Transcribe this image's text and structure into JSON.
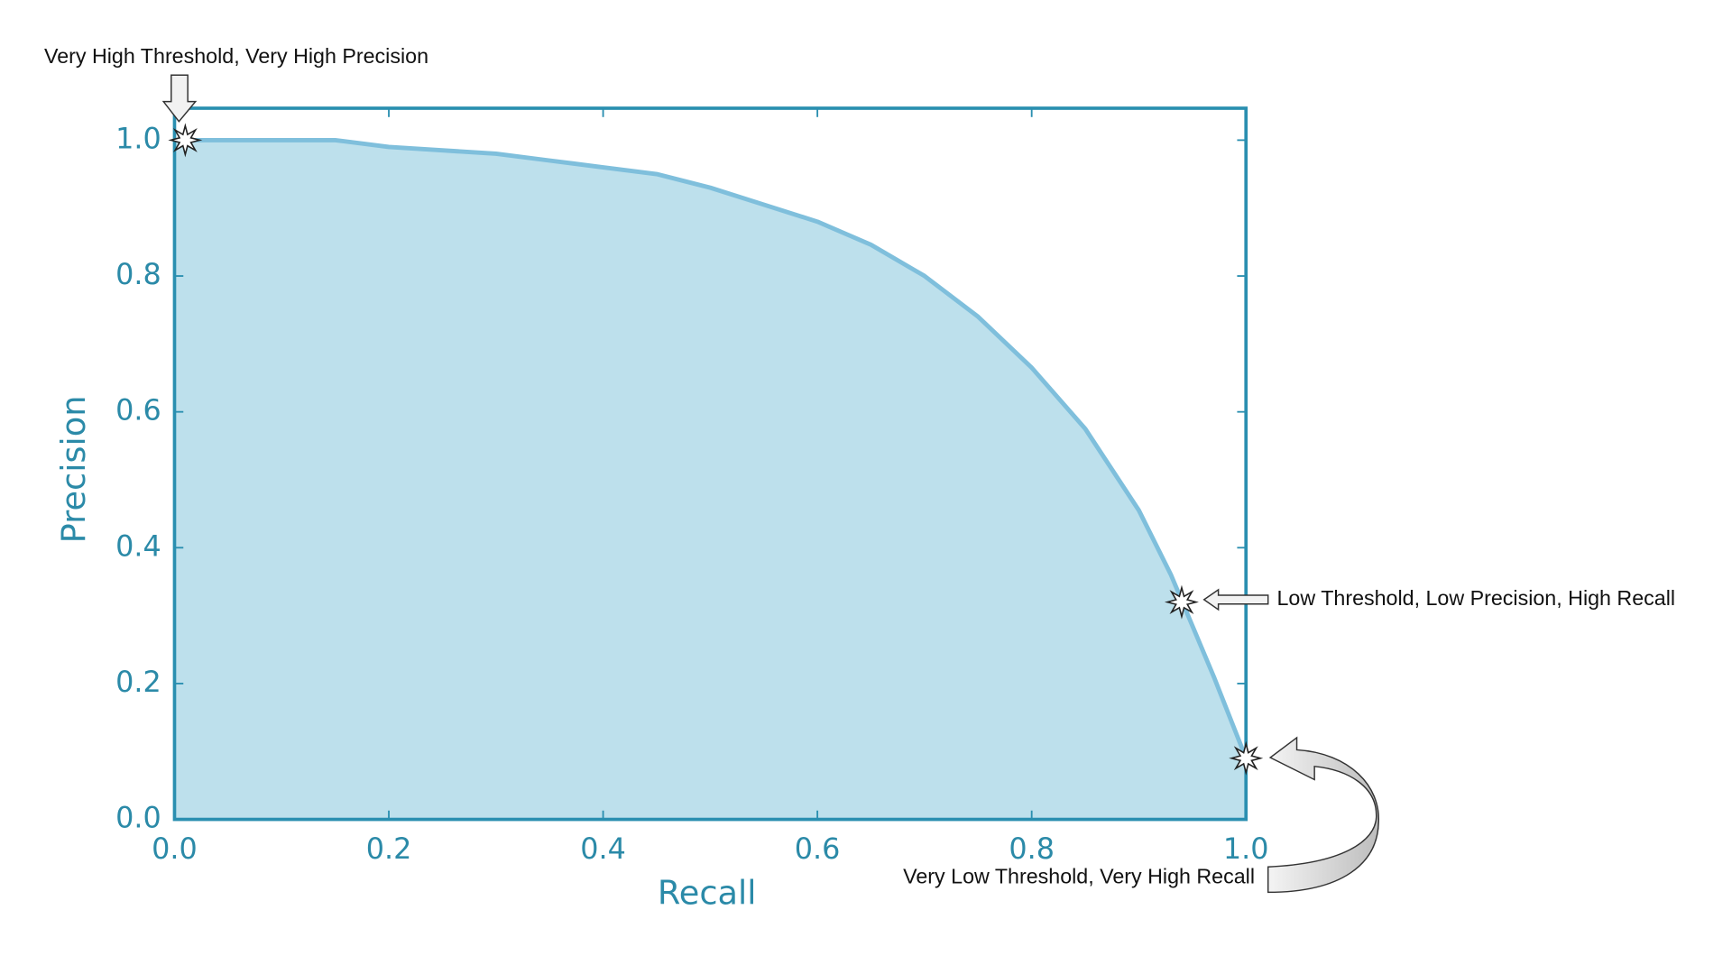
{
  "chart_data": {
    "type": "area",
    "x_label": "Recall",
    "y_label": "Precision",
    "x": [
      0,
      0.05,
      0.1,
      0.15,
      0.2,
      0.25,
      0.3,
      0.35,
      0.4,
      0.45,
      0.5,
      0.55,
      0.6,
      0.65,
      0.7,
      0.75,
      0.8,
      0.85,
      0.9,
      0.93,
      0.95,
      0.97,
      0.99,
      1.0
    ],
    "values": [
      1.0,
      1.0,
      1.0,
      1.0,
      0.99,
      0.985,
      0.98,
      0.97,
      0.96,
      0.95,
      0.93,
      0.905,
      0.88,
      0.846,
      0.8,
      0.74,
      0.665,
      0.575,
      0.455,
      0.36,
      0.285,
      0.21,
      0.13,
      0.09
    ],
    "color": "#7fbfdc",
    "fill": "#bde0ec",
    "axis_color": "#2a8fb0",
    "xlim": [
      0,
      1
    ],
    "ylim": [
      0,
      1.047
    ],
    "xticks": [
      {
        "value": 0,
        "label": "0.0"
      },
      0.2,
      0.4,
      0.6,
      0.8,
      {
        "value": 1,
        "label": "1.0"
      }
    ],
    "yticks": [
      {
        "value": 0,
        "label": "0.0"
      },
      0.2,
      0.4,
      0.6,
      0.8,
      {
        "value": 1,
        "label": "1.0"
      }
    ],
    "grid": false,
    "annotations": [
      {
        "text": "Very High Threshold, Very High Precision",
        "x": 0.01,
        "y": 1.0
      },
      {
        "text": "Low Threshold, Low Precision, High Recall",
        "x": 0.94,
        "y": 0.32
      },
      {
        "text": "Very Low Threshold, Very High Recall",
        "x": 1.0,
        "y": 0.09
      }
    ]
  }
}
